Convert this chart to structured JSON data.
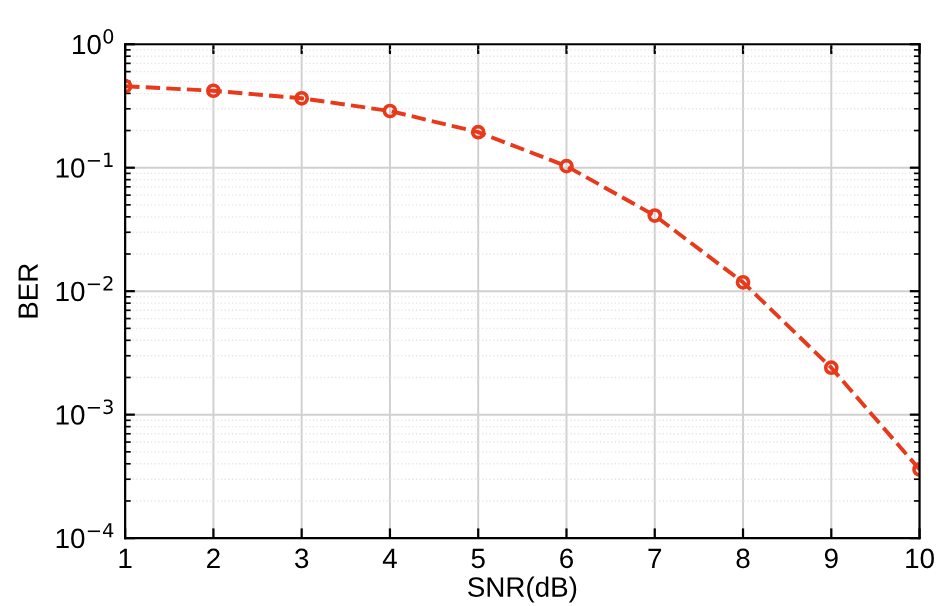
{
  "chart_data": {
    "type": "line",
    "xlabel": "SNR(dB)",
    "ylabel": "BER",
    "log": "y",
    "x": [
      1,
      2,
      3,
      4,
      5,
      6,
      7,
      8,
      9,
      10
    ],
    "series": [
      {
        "color": "#e8391a",
        "values": [
          0.457,
          0.42,
          0.365,
          0.288,
          0.194,
          0.103,
          0.041,
          0.0118,
          0.0024,
          0.00036
        ]
      }
    ],
    "xlim": [
      1,
      10
    ],
    "xticks": [
      1,
      2,
      3,
      4,
      5,
      6,
      7,
      8,
      9,
      10
    ],
    "ylim": [
      0.0001,
      1
    ],
    "yticks": [
      {
        "value": 0.0001,
        "label": "10$^{−4}$"
      },
      {
        "value": 0.001,
        "label": "10$^{−3}$"
      },
      {
        "value": 0.01,
        "label": "10$^{−2}$"
      },
      {
        "value": 0.1,
        "label": "10$^{−1}$"
      },
      {
        "value": 1,
        "label": "10$^{0}$"
      }
    ],
    "grid": true,
    "marker": "circle",
    "line_style": "dashed"
  }
}
